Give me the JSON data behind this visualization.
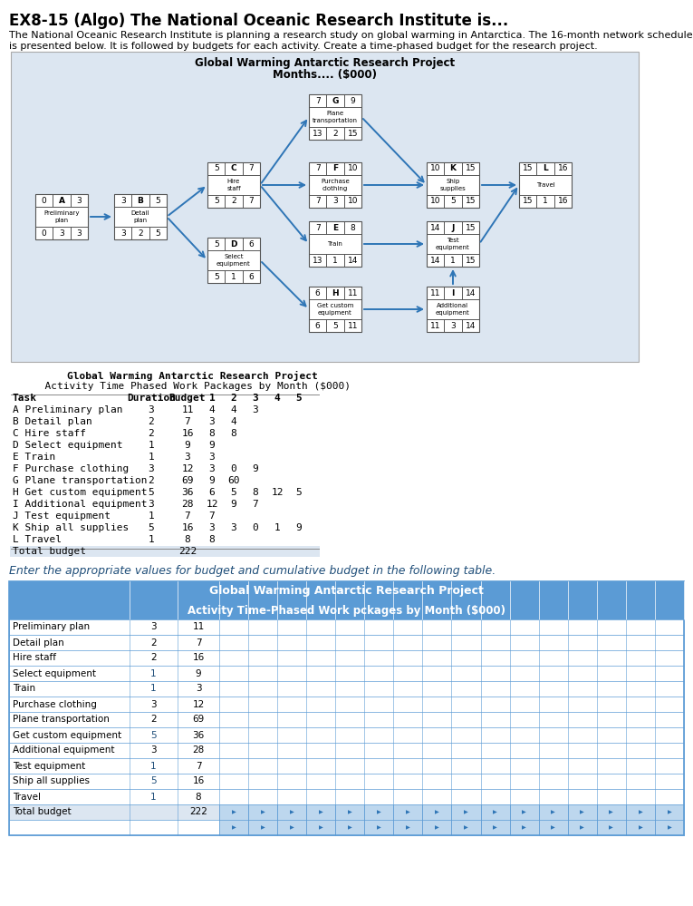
{
  "title": "EX8-15 (Algo) The National Oceanic Research Institute is...",
  "desc_line1": "The National Oceanic Research Institute is planning a research study on global warming in Antarctica. The 16-month network schedule",
  "desc_line2": "is presented below. It is followed by budgets for each activity. Create a time-phased budget for the research project.",
  "network_title1": "Global Warming Antarctic Research Project",
  "network_title2": "Months.... ($000)",
  "network_bg": "#dce6f1",
  "node_data": {
    "A": {
      "es": 0,
      "lbl": "A",
      "name": "Preliminary\nplan",
      "ef": 3,
      "ls": 0,
      "dur": 3,
      "lf": 3
    },
    "B": {
      "es": 3,
      "lbl": "B",
      "name": "Detail\nplan",
      "ef": 5,
      "ls": 3,
      "dur": 2,
      "lf": 5
    },
    "C": {
      "es": 5,
      "lbl": "C",
      "name": "Hire\nstaff",
      "ef": 7,
      "ls": 5,
      "dur": 2,
      "lf": 7
    },
    "D": {
      "es": 5,
      "lbl": "D",
      "name": "Select\nequipment",
      "ef": 6,
      "ls": 5,
      "dur": 1,
      "lf": 6
    },
    "G": {
      "es": 7,
      "lbl": "G",
      "name": "Plane\ntransportation",
      "ef": 9,
      "ls": 13,
      "dur": 2,
      "lf": 15
    },
    "F": {
      "es": 7,
      "lbl": "F",
      "name": "Purchase\nclothing",
      "ef": 10,
      "ls": 7,
      "dur": 3,
      "lf": 10
    },
    "E": {
      "es": 7,
      "lbl": "E",
      "name": "Train",
      "ef": 8,
      "ls": 13,
      "dur": 1,
      "lf": 14
    },
    "H": {
      "es": 6,
      "lbl": "H",
      "name": "Get custom\nequipment",
      "ef": 11,
      "ls": 6,
      "dur": 5,
      "lf": 11
    },
    "K": {
      "es": 10,
      "lbl": "K",
      "name": "Ship\nsupplies",
      "ef": 15,
      "ls": 10,
      "dur": 5,
      "lf": 15
    },
    "L": {
      "es": 15,
      "lbl": "L",
      "name": "Travel",
      "ef": 16,
      "ls": 15,
      "dur": 1,
      "lf": 16
    },
    "J": {
      "es": 14,
      "lbl": "J",
      "name": "Test\nequipment",
      "ef": 15,
      "ls": 14,
      "dur": 1,
      "lf": 15
    },
    "I": {
      "es": 11,
      "lbl": "I",
      "name": "Additional\nequipment",
      "ef": 14,
      "ls": 11,
      "dur": 3,
      "lf": 14
    }
  },
  "arrows": [
    [
      "A",
      "B",
      "right",
      "left"
    ],
    [
      "B",
      "C",
      "right",
      "left"
    ],
    [
      "B",
      "D",
      "right",
      "left"
    ],
    [
      "C",
      "G",
      "right",
      "left"
    ],
    [
      "C",
      "F",
      "right",
      "left"
    ],
    [
      "C",
      "E",
      "right",
      "left"
    ],
    [
      "D",
      "H",
      "right",
      "left"
    ],
    [
      "G",
      "K",
      "right",
      "left"
    ],
    [
      "F",
      "K",
      "right",
      "left"
    ],
    [
      "K",
      "L",
      "right",
      "left"
    ],
    [
      "E",
      "J",
      "right",
      "left"
    ],
    [
      "H",
      "I",
      "right",
      "left"
    ],
    [
      "I",
      "J",
      "top",
      "bottom"
    ],
    [
      "J",
      "L",
      "right",
      "left"
    ]
  ],
  "first_table_title1": "Global Warming Antarctic Research Project",
  "first_table_title2": "  Activity Time Phased Work Packages by Month ($000)",
  "first_table_cols": [
    "Task",
    "Duration",
    "Budget",
    "1",
    "2",
    "3",
    "4",
    "5"
  ],
  "first_table_data": [
    [
      "A Preliminary plan",
      "3",
      "11",
      "4",
      "4",
      "3",
      "",
      ""
    ],
    [
      "B Detail plan",
      "2",
      "7",
      "3",
      "4",
      "",
      "",
      ""
    ],
    [
      "C Hire staff",
      "2",
      "16",
      "8",
      "8",
      "",
      "",
      ""
    ],
    [
      "D Select equipment",
      "1",
      "9",
      "9",
      "",
      "",
      "",
      ""
    ],
    [
      "E Train",
      "1",
      "3",
      "3",
      "",
      "",
      "",
      ""
    ],
    [
      "F Purchase clothing",
      "3",
      "12",
      "3",
      "0",
      "9",
      "",
      ""
    ],
    [
      "G Plane transportation",
      "2",
      "69",
      "9",
      "60",
      "",
      "",
      ""
    ],
    [
      "H Get custom equipment",
      "5",
      "36",
      "6",
      "5",
      "8",
      "12",
      "5"
    ],
    [
      "I Additional equipment",
      "3",
      "28",
      "12",
      "9",
      "7",
      "",
      ""
    ],
    [
      "J Test equipment",
      "1",
      "7",
      "7",
      "",
      "",
      "",
      ""
    ],
    [
      "K Ship all supplies",
      "5",
      "16",
      "3",
      "3",
      "0",
      "1",
      "9"
    ],
    [
      "L Travel",
      "1",
      "8",
      "8",
      "",
      "",
      "",
      ""
    ],
    [
      "Total budget",
      "",
      "222",
      "",
      "",
      "",
      "",
      ""
    ]
  ],
  "prompt_text": "Enter the appropriate values for budget and cumulative budget in the following table.",
  "second_title1": "Global Warming Antarctic Research Project",
  "second_title2": "Activity Time-Phased Work pckages by Month ($000)",
  "second_table_tasks": [
    "Preliminary plan",
    "Detail plan",
    "Hire staff",
    "Select equipment",
    "Train",
    "Purchase clothing",
    "Plane transportation",
    "Get custom equipment",
    "Additional equipment",
    "Test equipment",
    "Ship all supplies",
    "Travel",
    "Total budget"
  ],
  "second_table_durations": [
    3,
    2,
    2,
    1,
    1,
    3,
    2,
    5,
    3,
    1,
    5,
    1,
    ""
  ],
  "second_table_budgets": [
    11,
    7,
    16,
    9,
    3,
    12,
    69,
    36,
    28,
    7,
    16,
    8,
    222
  ],
  "header_bg": "#5b9bd5",
  "cell_fill": "#bdd7ee",
  "arrow_color": "#2e75b6",
  "node_border": "#555555"
}
